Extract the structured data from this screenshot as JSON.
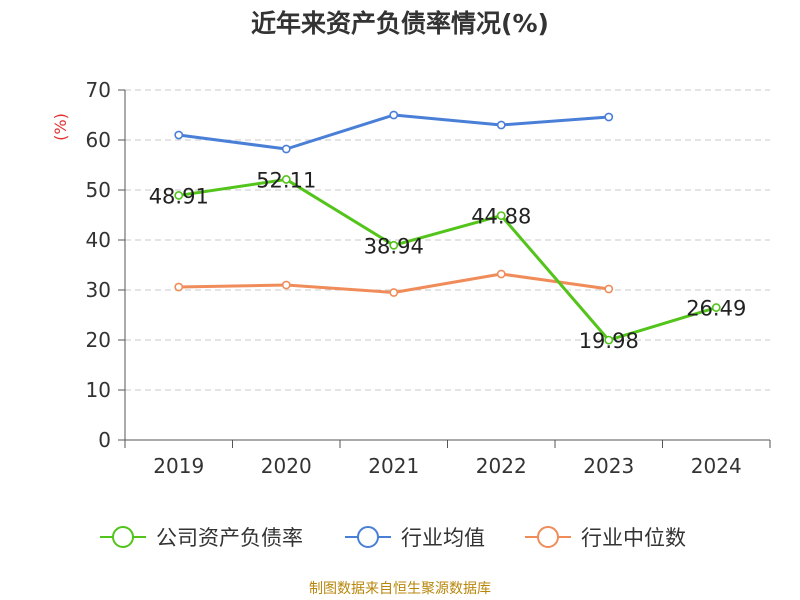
{
  "chart_data": {
    "type": "line",
    "title": "近年来资产负债率情况(%)",
    "ylabel": "(%)",
    "xlabel": "",
    "categories": [
      "2019",
      "2020",
      "2021",
      "2022",
      "2023",
      "2024"
    ],
    "ylim": [
      0,
      70
    ],
    "yticks": [
      0,
      10,
      20,
      30,
      40,
      50,
      60,
      70
    ],
    "grid": true,
    "legend_position": "bottom",
    "series": [
      {
        "name": "公司资产负债率",
        "color": "#52c41a",
        "values": [
          48.91,
          52.11,
          38.94,
          44.88,
          19.98,
          26.49
        ],
        "labels": [
          "48.91",
          "52.11",
          "38.94",
          "44.88",
          "19.98",
          "26.49"
        ]
      },
      {
        "name": "行业均值",
        "color": "#4a7fd8",
        "values": [
          61.0,
          58.2,
          65.0,
          63.0,
          64.6,
          null
        ]
      },
      {
        "name": "行业中位数",
        "color": "#f08c5a",
        "values": [
          30.6,
          31.0,
          29.5,
          33.2,
          30.2,
          null
        ]
      }
    ]
  },
  "source": "制图数据来自恒生聚源数据库"
}
